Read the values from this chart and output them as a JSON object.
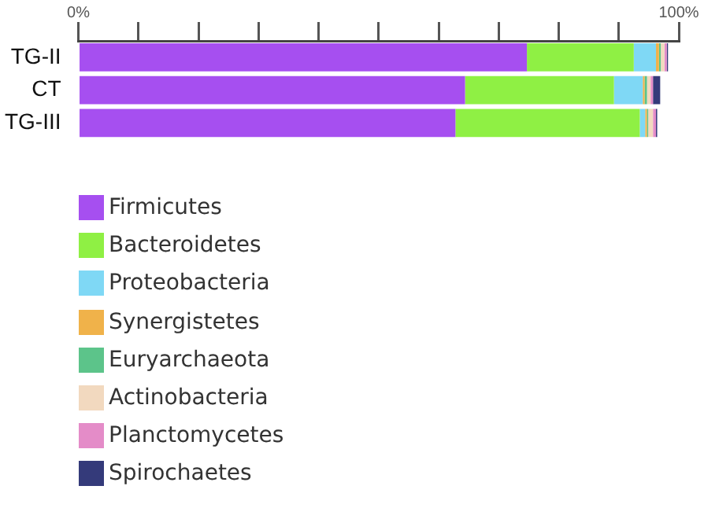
{
  "chart_data": {
    "type": "bar",
    "orientation": "horizontal",
    "stacked": true,
    "categories": [
      "TG-II",
      "CT",
      "TG-III"
    ],
    "xlim": [
      0,
      100
    ],
    "xticks": [
      {
        "value": 0,
        "label": "0%"
      },
      {
        "value": 10,
        "label": null
      },
      {
        "value": 20,
        "label": null
      },
      {
        "value": 30,
        "label": null
      },
      {
        "value": 40,
        "label": null
      },
      {
        "value": 50,
        "label": null
      },
      {
        "value": 60,
        "label": null
      },
      {
        "value": 70,
        "label": null
      },
      {
        "value": 80,
        "label": null
      },
      {
        "value": 90,
        "label": null
      },
      {
        "value": 100,
        "label": "100%"
      }
    ],
    "grid": false,
    "legend": "bottom left",
    "series": [
      {
        "name": "Firmicutes",
        "color": "#a64ff0",
        "values": [
          74.7,
          64.4,
          62.8
        ]
      },
      {
        "name": "Bacteroidetes",
        "color": "#8ff044",
        "values": [
          17.8,
          24.8,
          30.7
        ]
      },
      {
        "name": "Proteobacteria",
        "color": "#7fd8f5",
        "values": [
          3.7,
          4.8,
          0.9
        ]
      },
      {
        "name": "Synergistetes",
        "color": "#f0b24a",
        "values": [
          0.5,
          0.3,
          0.3
        ]
      },
      {
        "name": "Euryarchaeota",
        "color": "#5cc48a",
        "values": [
          0.3,
          0.4,
          0.2
        ]
      },
      {
        "name": "Actinobacteria",
        "color": "#f2d9bf",
        "values": [
          0.6,
          0.6,
          0.8
        ]
      },
      {
        "name": "Planctomycetes",
        "color": "#e48cc8",
        "values": [
          0.4,
          0.4,
          0.5
        ]
      },
      {
        "name": "Spirochaetes",
        "color": "#343a7a",
        "values": [
          0.2,
          1.2,
          0.2
        ]
      }
    ]
  }
}
